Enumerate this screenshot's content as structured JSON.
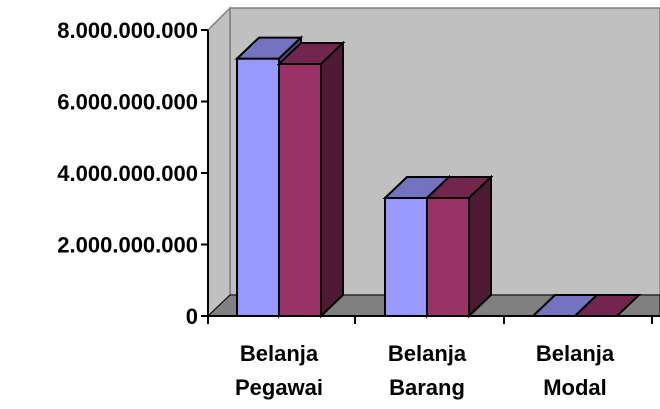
{
  "chart_data": {
    "type": "bar",
    "style": "3d-clustered-column",
    "title": "",
    "xlabel": "",
    "ylabel": "",
    "categories": [
      [
        "Belanja",
        "Pegawai"
      ],
      [
        "Belanja",
        "Barang"
      ],
      [
        "Belanja",
        "Modal"
      ]
    ],
    "series": [
      {
        "values": [
          7200000000,
          3300000000,
          0
        ],
        "color": "#9999ff"
      },
      {
        "values": [
          7050000000,
          3300000000,
          0
        ],
        "color": "#993366"
      }
    ],
    "ylim": [
      0,
      8000000000
    ],
    "yticks": [
      "0",
      "2.000.000.000",
      "4.000.000.000",
      "6.000.000.000",
      "8.000.000.000"
    ],
    "grid": false,
    "legend": "none",
    "colors": {
      "wall": "#c0c0c0",
      "floor": "#808080",
      "axis": "#000000"
    }
  }
}
